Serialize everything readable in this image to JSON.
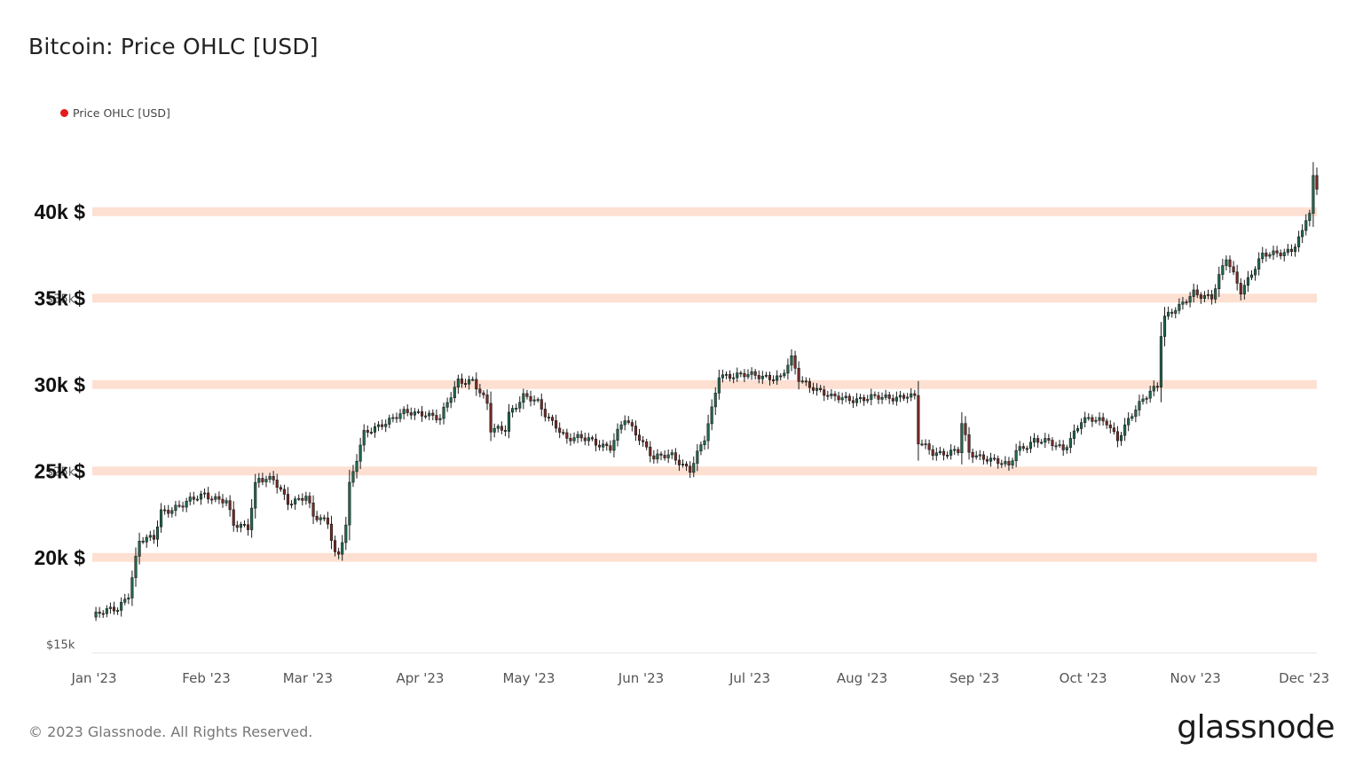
{
  "title": "Bitcoin: Price OHLC [USD]",
  "legend": {
    "label": "Price OHLC [USD]",
    "color": "#e31a1c"
  },
  "footer": "© 2023 Glassnode. All Rights Reserved.",
  "brand": "glassnode",
  "colors": {
    "up": "#1f6b4e",
    "down": "#7a2a25",
    "wick": "#1a1a1a",
    "band": "#fde0d2",
    "axis": "#e6e6e6"
  },
  "chart_data": {
    "type": "candlestick",
    "x_range": [
      "2023-01-01",
      "2023-12-05"
    ],
    "ylim": [
      14500,
      42500
    ],
    "y_ticks": [
      {
        "value": 15000,
        "label": "$15k"
      },
      {
        "value": 25000,
        "label": "$25k"
      },
      {
        "value": 35000,
        "label": "$35k"
      }
    ],
    "x_ticks": [
      {
        "date": "2023-01-01",
        "label": "Jan '23"
      },
      {
        "date": "2023-02-01",
        "label": "Feb '23"
      },
      {
        "date": "2023-03-01",
        "label": "Mar '23"
      },
      {
        "date": "2023-04-01",
        "label": "Apr '23"
      },
      {
        "date": "2023-05-01",
        "label": "May '23"
      },
      {
        "date": "2023-06-01",
        "label": "Jun '23"
      },
      {
        "date": "2023-07-01",
        "label": "Jul '23"
      },
      {
        "date": "2023-08-01",
        "label": "Aug '23"
      },
      {
        "date": "2023-09-01",
        "label": "Sep '23"
      },
      {
        "date": "2023-10-01",
        "label": "Oct '23"
      },
      {
        "date": "2023-11-01",
        "label": "Nov '23"
      },
      {
        "date": "2023-12-01",
        "label": "Dec '23"
      }
    ],
    "annotations": [
      {
        "value": 40000,
        "label": "40k $"
      },
      {
        "value": 35000,
        "label": "35k $"
      },
      {
        "value": 30000,
        "label": "30k $"
      },
      {
        "value": 25000,
        "label": "25k $"
      },
      {
        "value": 20000,
        "label": "20k $"
      }
    ],
    "series": [
      {
        "name": "Price OHLC [USD]",
        "close_path": [
          [
            "2023-01-01",
            16550
          ],
          [
            "2023-01-08",
            17100
          ],
          [
            "2023-01-11",
            17900
          ],
          [
            "2023-01-13",
            19900
          ],
          [
            "2023-01-14",
            20900
          ],
          [
            "2023-01-18",
            21100
          ],
          [
            "2023-01-20",
            22700
          ],
          [
            "2023-01-26",
            23000
          ],
          [
            "2023-02-01",
            23700
          ],
          [
            "2023-02-07",
            23200
          ],
          [
            "2023-02-09",
            21800
          ],
          [
            "2023-02-13",
            21800
          ],
          [
            "2023-02-15",
            24300
          ],
          [
            "2023-02-16",
            24600
          ],
          [
            "2023-02-20",
            24400
          ],
          [
            "2023-02-24",
            23200
          ],
          [
            "2023-03-01",
            23600
          ],
          [
            "2023-03-03",
            22300
          ],
          [
            "2023-03-07",
            22000
          ],
          [
            "2023-03-09",
            20300
          ],
          [
            "2023-03-10",
            20200
          ],
          [
            "2023-03-12",
            22000
          ],
          [
            "2023-03-13",
            24200
          ],
          [
            "2023-03-14",
            24900
          ],
          [
            "2023-03-17",
            27100
          ],
          [
            "2023-03-22",
            27800
          ],
          [
            "2023-03-28",
            28300
          ],
          [
            "2023-04-03",
            28400
          ],
          [
            "2023-04-07",
            28000
          ],
          [
            "2023-04-10",
            29300
          ],
          [
            "2023-04-12",
            30200
          ],
          [
            "2023-04-16",
            30300
          ],
          [
            "2023-04-20",
            28800
          ],
          [
            "2023-04-21",
            27300
          ],
          [
            "2023-04-25",
            27500
          ],
          [
            "2023-04-26",
            28400
          ],
          [
            "2023-04-30",
            29300
          ],
          [
            "2023-05-04",
            28900
          ],
          [
            "2023-05-06",
            28300
          ],
          [
            "2023-05-09",
            27700
          ],
          [
            "2023-05-12",
            26800
          ],
          [
            "2023-05-18",
            26900
          ],
          [
            "2023-05-24",
            26300
          ],
          [
            "2023-05-28",
            28000
          ],
          [
            "2023-06-01",
            27000
          ],
          [
            "2023-06-05",
            25700
          ],
          [
            "2023-06-10",
            25900
          ],
          [
            "2023-06-15",
            25100
          ],
          [
            "2023-06-19",
            26800
          ],
          [
            "2023-06-21",
            28500
          ],
          [
            "2023-06-23",
            30600
          ],
          [
            "2023-06-30",
            30500
          ],
          [
            "2023-07-06",
            30500
          ],
          [
            "2023-07-10",
            30400
          ],
          [
            "2023-07-13",
            31400
          ],
          [
            "2023-07-15",
            30300
          ],
          [
            "2023-07-19",
            29900
          ],
          [
            "2023-07-24",
            29200
          ],
          [
            "2023-08-01",
            29200
          ],
          [
            "2023-08-07",
            29200
          ],
          [
            "2023-08-14",
            29400
          ],
          [
            "2023-08-16",
            29200
          ],
          [
            "2023-08-17",
            26600
          ],
          [
            "2023-08-21",
            26100
          ],
          [
            "2023-08-28",
            26100
          ],
          [
            "2023-08-29",
            27700
          ],
          [
            "2023-08-31",
            26000
          ],
          [
            "2023-09-05",
            25800
          ],
          [
            "2023-09-11",
            25200
          ],
          [
            "2023-09-13",
            26200
          ],
          [
            "2023-09-18",
            26800
          ],
          [
            "2023-09-22",
            26600
          ],
          [
            "2023-09-26",
            26300
          ],
          [
            "2023-10-01",
            27900
          ],
          [
            "2023-10-08",
            27900
          ],
          [
            "2023-10-11",
            26900
          ],
          [
            "2023-10-16",
            28500
          ],
          [
            "2023-10-20",
            29700
          ],
          [
            "2023-10-22",
            30000
          ],
          [
            "2023-10-23",
            33000
          ],
          [
            "2023-10-24",
            33900
          ],
          [
            "2023-10-28",
            34400
          ],
          [
            "2023-11-01",
            35400
          ],
          [
            "2023-11-06",
            35000
          ],
          [
            "2023-11-09",
            36700
          ],
          [
            "2023-11-10",
            37300
          ],
          [
            "2023-11-14",
            35500
          ],
          [
            "2023-11-16",
            36100
          ],
          [
            "2023-11-20",
            37400
          ],
          [
            "2023-11-25",
            37700
          ],
          [
            "2023-11-28",
            37800
          ],
          [
            "2023-12-01",
            38700
          ],
          [
            "2023-12-02",
            39500
          ],
          [
            "2023-12-03",
            39900
          ],
          [
            "2023-12-04",
            41900
          ],
          [
            "2023-12-05",
            41300
          ]
        ]
      }
    ]
  }
}
